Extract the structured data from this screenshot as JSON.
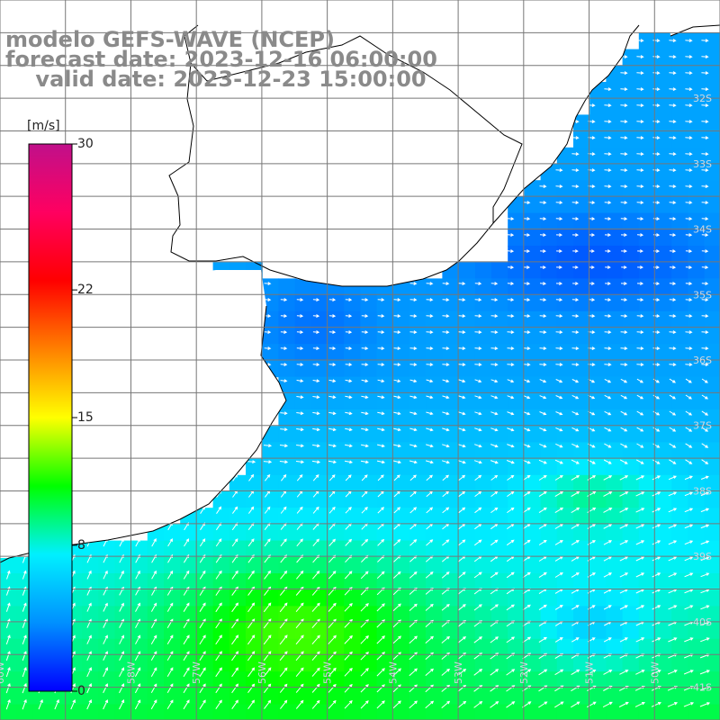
{
  "title": {
    "line1": "modelo GEFS-WAVE (NCEP)",
    "line2": "forecast date: 2023-12-16 06:00:00",
    "line3": "    valid date: 2023-12-23 15:00:00"
  },
  "map": {
    "lon_range": [
      -60,
      -49
    ],
    "lat_range": [
      -41.5,
      -30.5
    ],
    "grid_spacing_deg": 1,
    "land_color": "#ffffff",
    "coastline_color": "#000000",
    "grid_color": "#777777",
    "arrow_color": "#ffffff",
    "lat_labels": [
      "32S",
      "33S",
      "34S",
      "35S",
      "36S",
      "37S",
      "38S",
      "39S",
      "40S",
      "41S"
    ],
    "lon_labels": [
      "60W",
      "59W",
      "58W",
      "57W",
      "56W",
      "55W",
      "54W",
      "53W",
      "52W",
      "51W",
      "50W"
    ]
  },
  "colorbar": {
    "unit": "[m/s]",
    "min": 0,
    "max": 30,
    "ticks": [
      "0",
      "8",
      "15",
      "22",
      "30"
    ],
    "colors": [
      "#0000ff",
      "#0090ff",
      "#00f0ff",
      "#00ff00",
      "#ffff00",
      "#ff8000",
      "#ff0000",
      "#ff0060",
      "#c0108a"
    ]
  }
}
